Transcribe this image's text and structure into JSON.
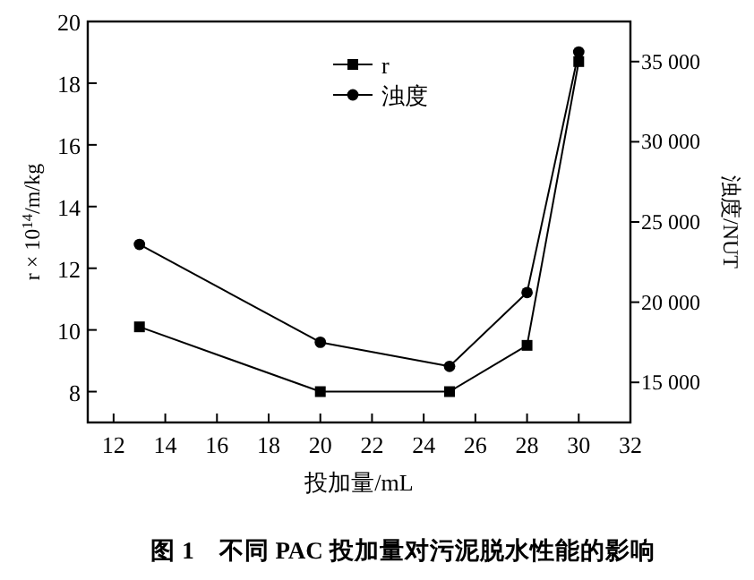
{
  "chart_data": {
    "type": "line",
    "xlabel": "投加量/mL",
    "ylabel": "r × 10$^{14}$/m/kg",
    "y2label": "浊度/NUT",
    "x": [
      13,
      20,
      25,
      28,
      30
    ],
    "series": [
      {
        "name": "r",
        "color": "#000000",
        "marker": "square",
        "values": [
          10.1,
          8.0,
          8.0,
          9.5,
          18.7
        ]
      },
      {
        "name": "浊度",
        "color": "#000000",
        "marker": "circle",
        "axis": "y2",
        "values": [
          23600,
          17500,
          16000,
          20600,
          35600
        ]
      }
    ],
    "xlim": [
      11,
      32
    ],
    "xticks": [
      12,
      14,
      16,
      18,
      20,
      22,
      24,
      26,
      28,
      30,
      32
    ],
    "ylim": [
      7,
      20
    ],
    "yticks": [
      8,
      10,
      12,
      14,
      16,
      18,
      20
    ],
    "y2lim": [
      12500,
      37500
    ],
    "y2ticks": [
      {
        "value": 15000,
        "label": "15 000"
      },
      {
        "value": 20000,
        "label": "20 000"
      },
      {
        "value": 25000,
        "label": "25 000"
      },
      {
        "value": 30000,
        "label": "30 000"
      },
      {
        "value": 35000,
        "label": "35 000"
      }
    ],
    "legend": "top",
    "line_style": "solid",
    "grid": false,
    "annotations": [
      "图 1　不同 PAC 投加量对污泥脱水性能的影响"
    ]
  }
}
